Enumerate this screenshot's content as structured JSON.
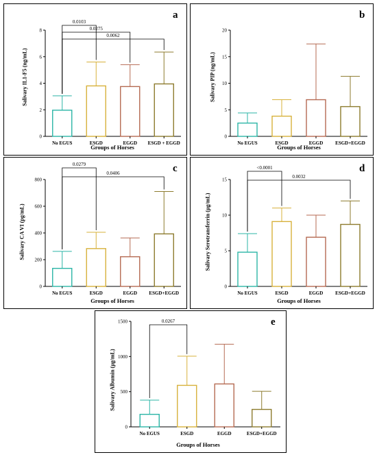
{
  "chart_data": [
    {
      "type": "bar",
      "panel_label": "a",
      "ylabel": "Salivary IL1-F5 (ng/mL)",
      "xlabel": "Groups of Horses",
      "categories": [
        "No EGUS",
        "ESGD",
        "EGGD",
        "ESGD + EGGD"
      ],
      "values": [
        1.97,
        3.8,
        3.75,
        3.95
      ],
      "errors": [
        3.05,
        5.6,
        5.4,
        6.35
      ],
      "colors": [
        "#2bb5a6",
        "#d7b13a",
        "#b56a52",
        "#8c7a2c"
      ],
      "ylim": [
        0,
        8
      ],
      "yticks": [
        "0",
        "2",
        "4",
        "6",
        "8"
      ],
      "comparisons": [
        {
          "from": 0,
          "to": 1,
          "label": "0.0103"
        },
        {
          "from": 0,
          "to": 2,
          "label": "0.0275"
        },
        {
          "from": 0,
          "to": 3,
          "label": "0.0062"
        }
      ]
    },
    {
      "type": "bar",
      "panel_label": "b",
      "ylabel": "Salivary PIP (ng/mL)",
      "xlabel": "Groups of Horses",
      "categories": [
        "No EGUS",
        "ESGD",
        "EGGD",
        "ESGD+EGGD"
      ],
      "values": [
        2.5,
        3.8,
        6.9,
        5.6
      ],
      "errors": [
        4.4,
        6.9,
        17.4,
        11.3
      ],
      "colors": [
        "#2bb5a6",
        "#d7b13a",
        "#b56a52",
        "#8c7a2c"
      ],
      "ylim": [
        0,
        20
      ],
      "yticks": [
        "0",
        "5",
        "10",
        "15",
        "20"
      ],
      "comparisons": []
    },
    {
      "type": "bar",
      "panel_label": "c",
      "ylabel": "Salivary CA VI (pg/mL)",
      "xlabel": "Groups of Horses",
      "categories": [
        "No EGUS",
        "ESGD",
        "EGGD",
        "ESGD+EGGD"
      ],
      "values": [
        135,
        283,
        222,
        393
      ],
      "errors": [
        262,
        405,
        363,
        710
      ],
      "colors": [
        "#2bb5a6",
        "#d7b13a",
        "#b56a52",
        "#8c7a2c"
      ],
      "ylim": [
        0,
        800
      ],
      "yticks": [
        "0",
        "200",
        "400",
        "600",
        "800"
      ],
      "comparisons": [
        {
          "from": 0,
          "to": 1,
          "label": "0.0279"
        },
        {
          "from": 0,
          "to": 3,
          "label": "0.0406"
        }
      ]
    },
    {
      "type": "bar",
      "panel_label": "d",
      "ylabel": "Salivary Serotransferrin (µg/mL)",
      "xlabel": "Groups of Horses",
      "categories": [
        "No EGUS",
        "ESGD",
        "EGGD",
        "ESGD+EGGD"
      ],
      "values": [
        4.8,
        9.1,
        6.9,
        8.7
      ],
      "errors": [
        7.4,
        11.0,
        10.0,
        12.0
      ],
      "colors": [
        "#2bb5a6",
        "#d7b13a",
        "#b56a52",
        "#8c7a2c"
      ],
      "ylim": [
        0,
        15
      ],
      "yticks": [
        "0",
        "5",
        "10",
        "15"
      ],
      "comparisons": [
        {
          "from": 0,
          "to": 1,
          "label": "<0.0001"
        },
        {
          "from": 0,
          "to": 3,
          "label": "0.0032"
        }
      ]
    },
    {
      "type": "bar",
      "panel_label": "e",
      "ylabel": "Salivary Albumin (µg/mL)",
      "xlabel": "Groups of Horses",
      "categories": [
        "No EGUS",
        "ESGD",
        "EGGD",
        "ESGD+EGGD"
      ],
      "values": [
        178,
        590,
        610,
        248
      ],
      "errors": [
        380,
        1005,
        1175,
        505
      ],
      "colors": [
        "#2bb5a6",
        "#d7b13a",
        "#b56a52",
        "#8c7a2c"
      ],
      "ylim": [
        0,
        1500
      ],
      "yticks": [
        "0",
        "500",
        "1000",
        "1500"
      ],
      "comparisons": [
        {
          "from": 0,
          "to": 1,
          "label": "0.0267"
        }
      ]
    }
  ]
}
